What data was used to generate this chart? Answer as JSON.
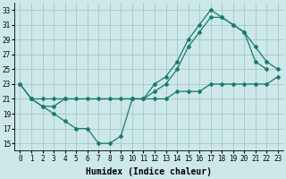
{
  "title": "",
  "xlabel": "Humidex (Indice chaleur)",
  "xlim": [
    -0.5,
    23.5
  ],
  "ylim": [
    14,
    34
  ],
  "yticks": [
    15,
    17,
    19,
    21,
    23,
    25,
    27,
    29,
    31,
    33
  ],
  "xticks": [
    0,
    1,
    2,
    3,
    4,
    5,
    6,
    7,
    8,
    9,
    10,
    11,
    12,
    13,
    14,
    15,
    16,
    17,
    18,
    19,
    20,
    21,
    22,
    23
  ],
  "bg_color": "#cce8e8",
  "grid_color": "#aacccc",
  "line_color": "#1a7a6e",
  "line1_x": [
    0,
    1,
    2,
    3,
    4,
    5,
    6,
    7,
    8,
    9,
    10,
    11,
    12,
    13,
    14,
    15,
    16,
    17,
    18,
    19,
    20,
    21,
    22,
    23
  ],
  "line1_y": [
    23,
    21,
    21,
    21,
    21,
    21,
    21,
    21,
    21,
    21,
    21,
    21,
    21,
    21,
    22,
    22,
    22,
    23,
    23,
    23,
    23,
    23,
    23,
    24
  ],
  "line2_x": [
    0,
    1,
    2,
    3,
    4,
    5,
    6,
    7,
    8,
    9,
    10,
    11,
    12,
    13,
    14,
    15,
    16,
    17,
    18,
    19,
    20,
    21,
    22,
    23
  ],
  "line2_y": [
    23,
    21,
    20,
    19,
    18,
    17,
    17,
    15,
    15,
    16,
    21,
    21,
    22,
    23,
    25,
    28,
    30,
    32,
    32,
    31,
    30,
    28,
    26,
    25
  ],
  "line3_x": [
    1,
    2,
    3,
    4,
    10,
    11,
    12,
    13,
    14,
    15,
    16,
    17,
    18,
    19,
    20,
    21,
    22
  ],
  "line3_y": [
    21,
    20,
    20,
    21,
    21,
    21,
    23,
    24,
    26,
    29,
    31,
    33,
    32,
    31,
    30,
    26,
    25
  ],
  "tick_fontsize": 5.5,
  "axis_fontsize": 7,
  "lw": 0.9,
  "ms": 2.0
}
